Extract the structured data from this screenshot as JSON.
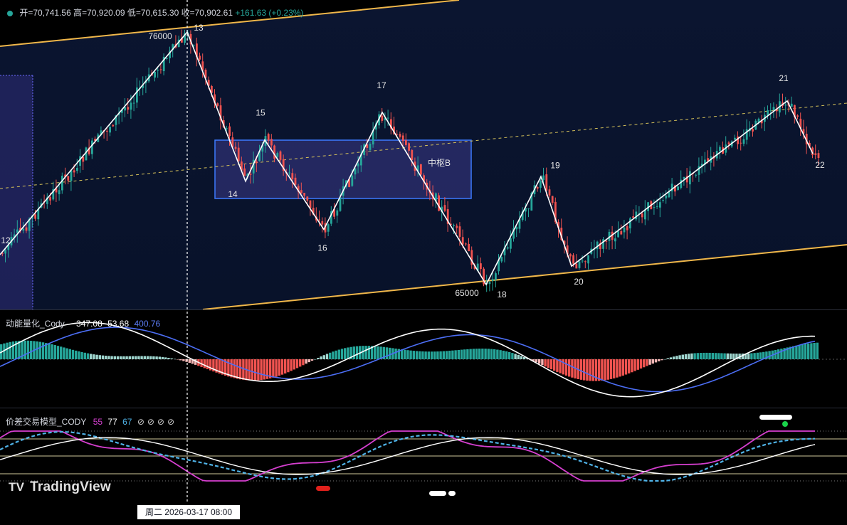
{
  "header": {
    "open_label": "开=",
    "open": "70,741.56",
    "high_label": "高=",
    "high": "70,920.09",
    "low_label": "低=",
    "low": "70,615.30",
    "close_label": "收=",
    "close": "70,902.61",
    "change": "+161.63 (+0.23%)"
  },
  "colors": {
    "background": "#0b1530",
    "up": "#26a69a",
    "down": "#ef5350",
    "channel": "#f0b74a",
    "zone": "#3d7bff",
    "wave": "#ffffff"
  },
  "panes": {
    "momentum": {
      "name": "动能量化_Cody",
      "v1": "−347.08",
      "v2": "53.68",
      "v3": "400.76"
    },
    "spread": {
      "name": "价差交易模型_CODY",
      "v1": "55",
      "v2": "77",
      "v3": "67"
    }
  },
  "logo": "TradingView",
  "crosshair_date": "周二  2026-03-17   08:00",
  "chart_data": {
    "type": "candlestick",
    "zone_label": "中枢B",
    "price_labels": [
      "76000",
      "65000"
    ],
    "wave_points": [
      {
        "label": "12",
        "price": 66300
      },
      {
        "label": "13",
        "price": 76000
      },
      {
        "label": "14",
        "price": 69500
      },
      {
        "label": "15",
        "price": 71300
      },
      {
        "label": "16",
        "price": 67400
      },
      {
        "label": "17",
        "price": 72500
      },
      {
        "label": "18",
        "price": 65000
      },
      {
        "label": "19",
        "price": 69700
      },
      {
        "label": "20",
        "price": 65800
      },
      {
        "label": "21",
        "price": 73000
      },
      {
        "label": "22",
        "price": 70700
      }
    ]
  }
}
